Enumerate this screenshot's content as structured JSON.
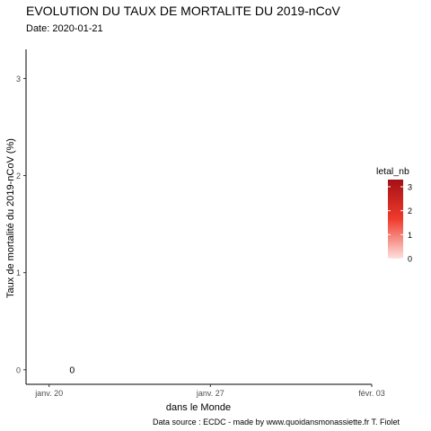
{
  "chart_data": {
    "type": "scatter",
    "title": "EVOLUTION DU TAUX DE MORTALITE DU 2019-nCoV",
    "subtitle": "Date: 2020-01-21",
    "xlabel": "dans le Monde",
    "ylabel": "Taux de mortalité du 2019-nCoV (%)",
    "caption": "Data source : ECDC - made by www.quoidansmonassiette.fr T. Fiolet",
    "x_ticks": [
      {
        "date": "2020-01-20",
        "label": "janv. 20"
      },
      {
        "date": "2020-01-27",
        "label": "janv. 27"
      },
      {
        "date": "2020-02-03",
        "label": "févr. 03"
      }
    ],
    "xlim": [
      "2020-01-19",
      "2020-02-03"
    ],
    "y_ticks": [
      0,
      1,
      2,
      3
    ],
    "ylim": [
      -0.15,
      3.3
    ],
    "grid": false,
    "points": [
      {
        "x": "2020-01-21",
        "y": 0,
        "label": "0"
      }
    ],
    "legend": {
      "title": "letal_nb",
      "position": "right",
      "ticks": [
        0,
        1,
        2,
        3
      ],
      "range": [
        0,
        3.3
      ],
      "color_low": "#fde0dd",
      "color_high": "#a50f15"
    }
  }
}
